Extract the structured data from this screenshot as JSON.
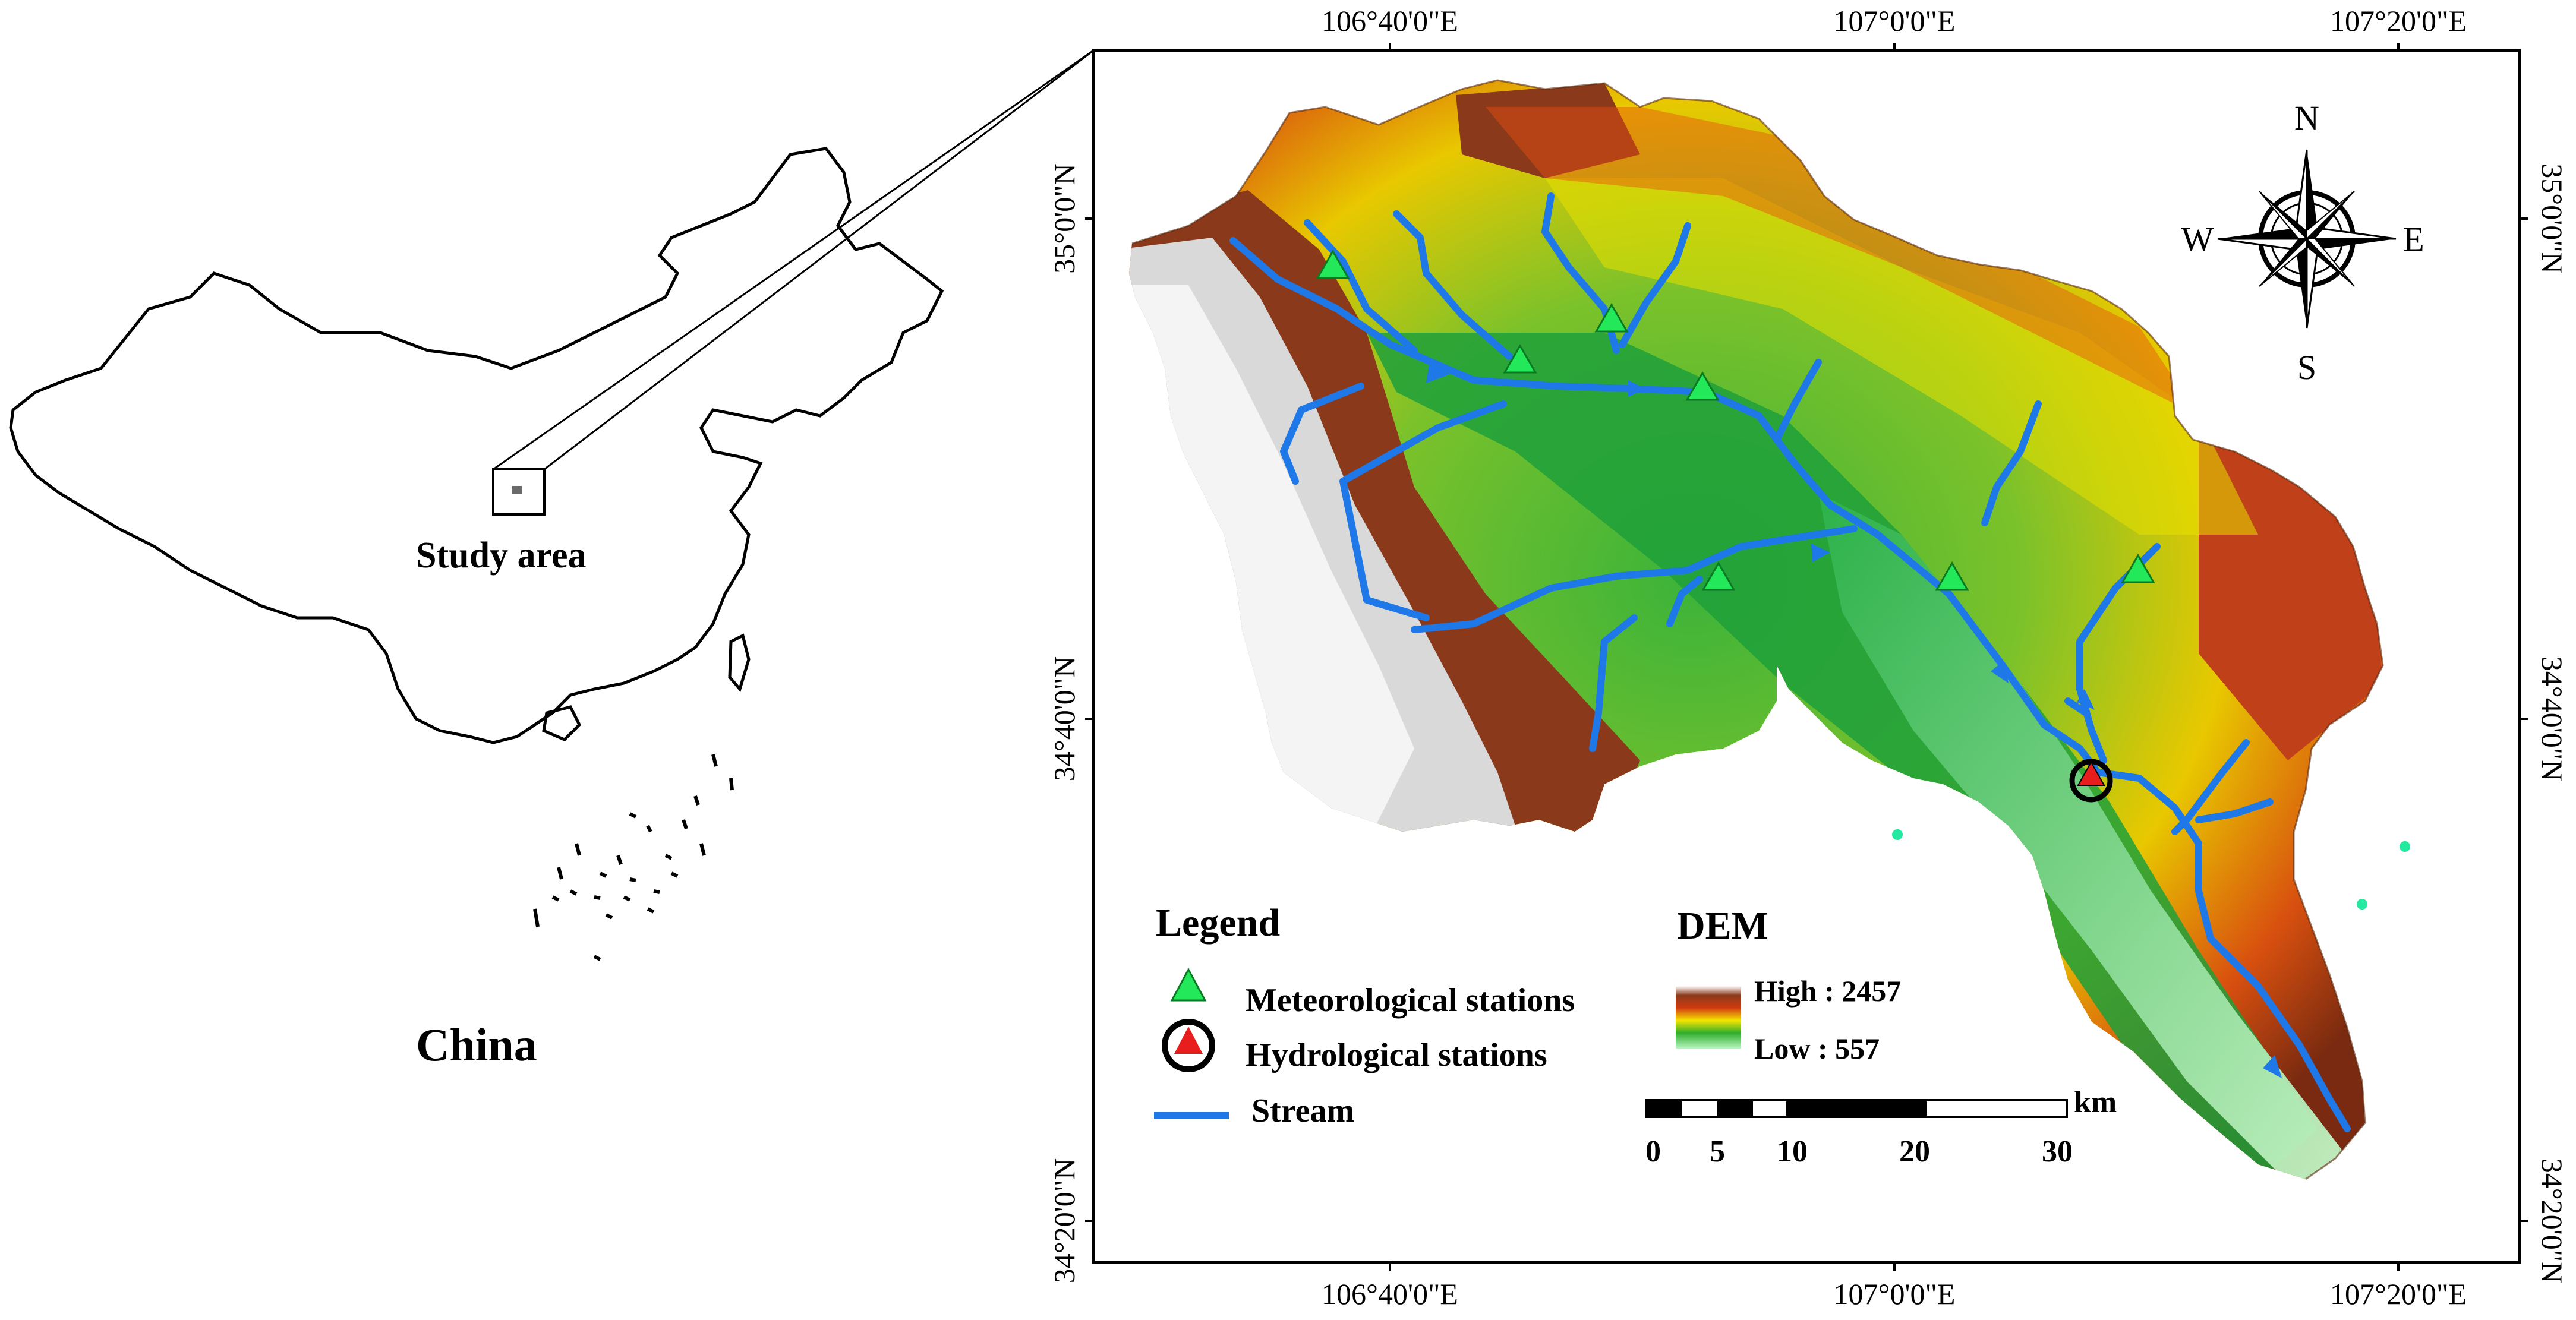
{
  "inset": {
    "study_area_label": "Study area",
    "country_label": "China"
  },
  "map": {
    "top_longitudes": [
      "106°40'0\"E",
      "107°0'0\"E",
      "107°20'0\"E"
    ],
    "bottom_longitudes": [
      "106°40'0\"E",
      "107°0'0\"E",
      "107°20'0\"E"
    ],
    "left_latitudes": [
      "35°0'0\"N",
      "34°40'0\"N",
      "34°20'0\"N"
    ],
    "right_latitudes": [
      "35°0'0\"N",
      "34°40'0\"N",
      "34°20'0\"N"
    ],
    "compass": {
      "n": "N",
      "s": "S",
      "e": "E",
      "w": "W"
    }
  },
  "legend": {
    "title": "Legend",
    "items": [
      {
        "label": "Meteorological stations",
        "icon": "green-triangle-icon"
      },
      {
        "label": "Hydrological stations",
        "icon": "red-triangle-circle-icon"
      },
      {
        "label": "Stream",
        "icon": "blue-line-icon"
      }
    ]
  },
  "dem": {
    "title": "DEM",
    "high": "High : 2457",
    "low": "Low : 557"
  },
  "scalebar": {
    "unit": "km",
    "ticks": [
      "0",
      "5",
      "10",
      "20",
      "30"
    ]
  },
  "colors": {
    "stream": "#1f78e8",
    "met_station": "#22e85a",
    "hydro_station": "#e81e1e"
  }
}
